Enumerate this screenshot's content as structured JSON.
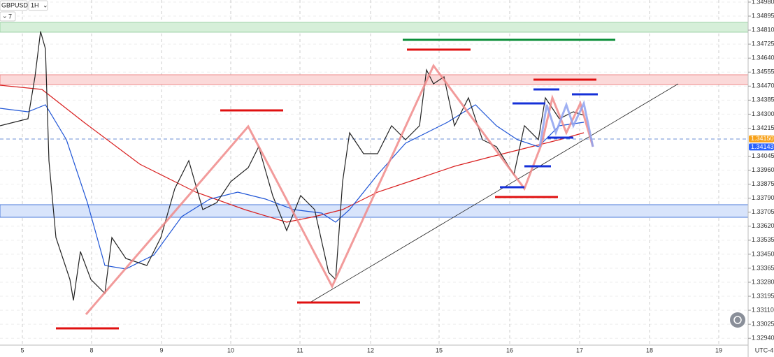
{
  "toolbar": {
    "symbol": "GBPUSD",
    "interval": "1H",
    "indicator_count": "7"
  },
  "price_axis": {
    "labels": [
      "1.34980",
      "1.34895",
      "1.34810",
      "1.34725",
      "1.34640",
      "1.34555",
      "1.34470",
      "1.34385",
      "1.34300",
      "1.34215",
      "1.34045",
      "1.33960",
      "1.33875",
      "1.33790",
      "1.33705",
      "1.33620",
      "1.33535",
      "1.33450",
      "1.33365",
      "1.33280",
      "1.33195",
      "1.33110",
      "1.33025",
      "1.32940"
    ]
  },
  "price_tags": [
    {
      "label": "1.34150",
      "color": "#f7a21b"
    },
    {
      "label": "1.34143",
      "color": "#2962ff"
    }
  ],
  "time_axis": {
    "labels": [
      "5",
      "8",
      "9",
      "10",
      "11",
      "12",
      "15",
      "16",
      "17",
      "18",
      "19"
    ],
    "timezone": "UTC-4"
  }
}
